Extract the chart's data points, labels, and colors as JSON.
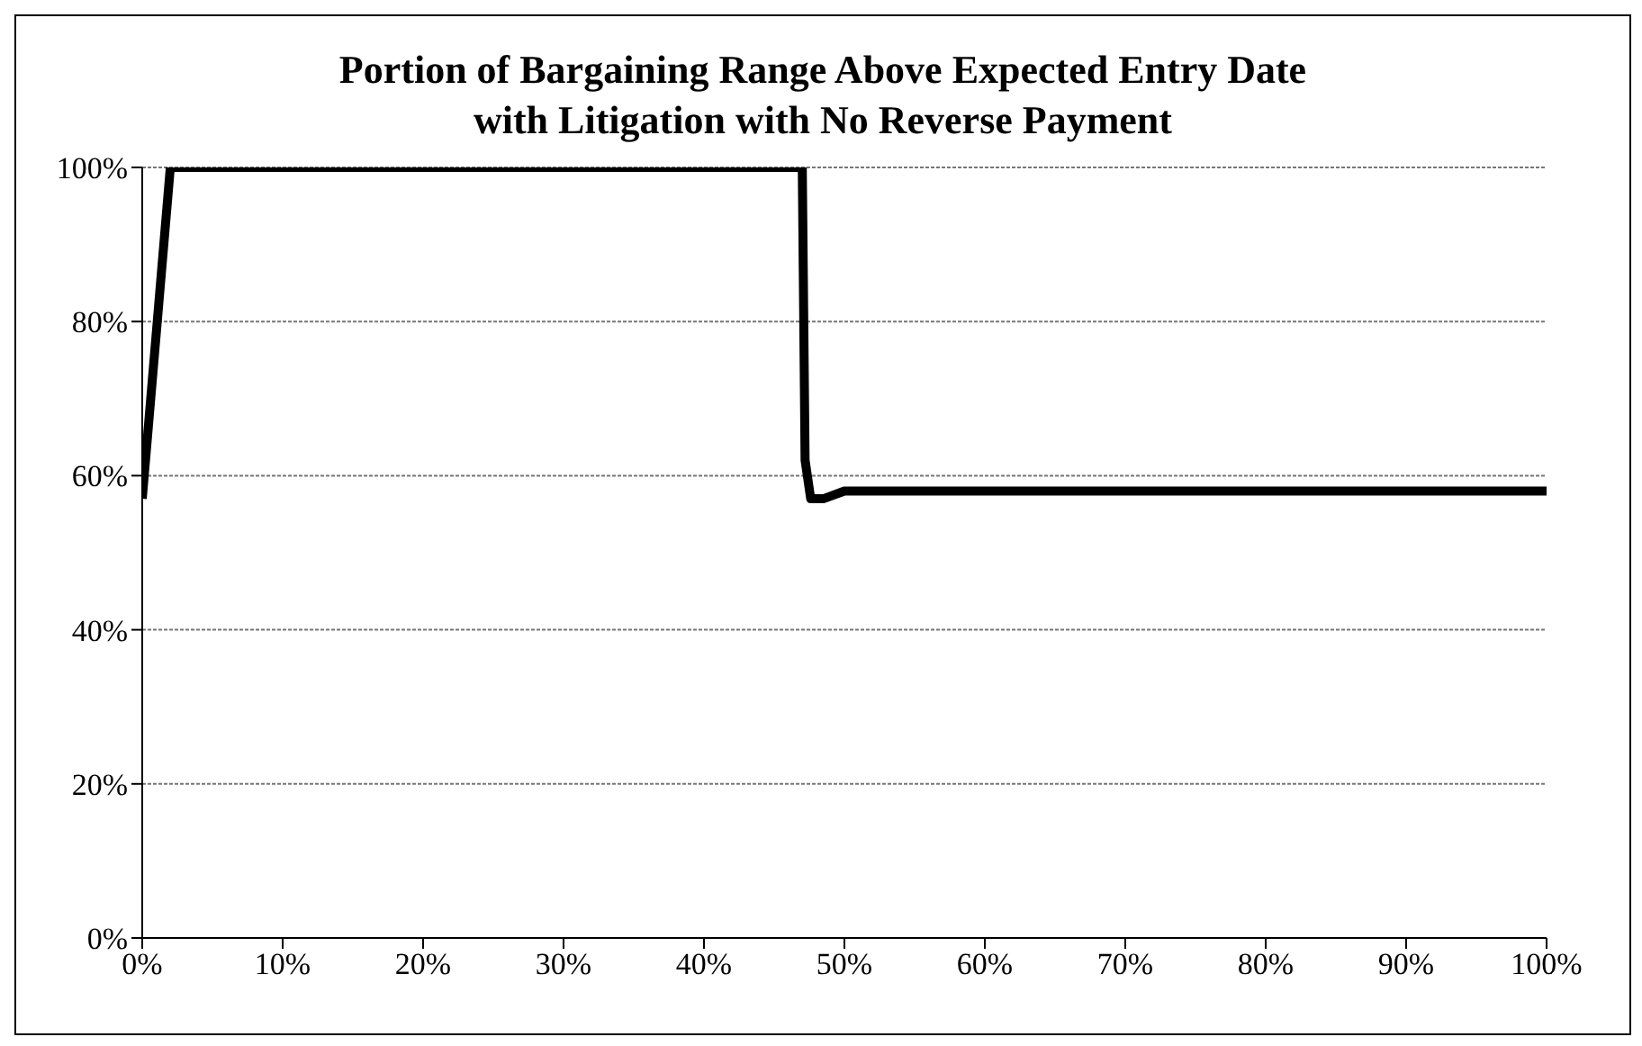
{
  "chart_data": {
    "type": "line",
    "title": "Portion of Bargaining Range Above Expected Entry Date\nwith Litigation with No Reverse Payment",
    "x": [
      0,
      2,
      47,
      47.2,
      47.6,
      48.5,
      50,
      100
    ],
    "series": [
      {
        "color": "#000000",
        "values": [
          57,
          100,
          100,
          62,
          57,
          57,
          58,
          58
        ]
      }
    ],
    "xlim": [
      0,
      100
    ],
    "xticks": [
      {
        "value": 0,
        "label": "0%"
      },
      {
        "value": 10,
        "label": "10%"
      },
      {
        "value": 20,
        "label": "20%"
      },
      {
        "value": 30,
        "label": "30%"
      },
      {
        "value": 40,
        "label": "40%"
      },
      {
        "value": 50,
        "label": "50%"
      },
      {
        "value": 60,
        "label": "60%"
      },
      {
        "value": 70,
        "label": "70%"
      },
      {
        "value": 80,
        "label": "80%"
      },
      {
        "value": 90,
        "label": "90%"
      },
      {
        "value": 100,
        "label": "100%"
      }
    ],
    "ylim": [
      0,
      100
    ],
    "yticks": [
      {
        "value": 0,
        "label": "0%"
      },
      {
        "value": 20,
        "label": "20%"
      },
      {
        "value": 40,
        "label": "40%"
      },
      {
        "value": 60,
        "label": "60%"
      },
      {
        "value": 80,
        "label": "80%"
      },
      {
        "value": 100,
        "label": "100%"
      }
    ],
    "grid": "y",
    "legend": false,
    "marker": "none",
    "line_style": "solid"
  }
}
